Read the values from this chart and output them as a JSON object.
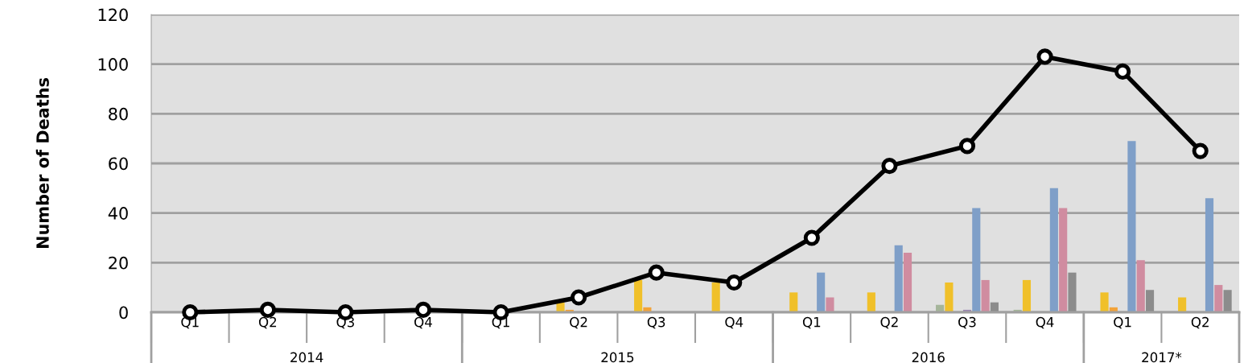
{
  "chart_data": {
    "type": "bar",
    "ylabel": "Number of Deaths",
    "categories": [
      "Q1",
      "Q2",
      "Q3",
      "Q4",
      "Q1",
      "Q2",
      "Q3",
      "Q4",
      "Q1",
      "Q2",
      "Q3",
      "Q4",
      "Q1",
      "Q2"
    ],
    "annotations": [
      "2014",
      "2015",
      "2016",
      "2017*"
    ],
    "series": [
      {
        "color": "#a5b59a",
        "values": [
          0,
          0,
          0,
          0,
          0,
          0,
          0,
          0,
          0,
          0,
          3,
          1,
          0,
          0
        ]
      },
      {
        "color": "#f0c02a",
        "values": [
          0,
          0,
          0,
          0,
          0,
          4,
          13,
          12,
          8,
          8,
          12,
          13,
          8,
          6
        ]
      },
      {
        "color": "#f2a33a",
        "values": [
          0,
          0,
          0,
          0,
          0,
          1,
          2,
          0,
          0,
          0,
          0,
          0,
          2,
          0
        ]
      },
      {
        "color": "#9a86b0",
        "values": [
          0,
          0,
          0,
          0,
          0,
          0,
          0,
          0,
          0,
          0,
          1,
          0,
          0,
          0
        ]
      },
      {
        "color": "#7f9fc8",
        "values": [
          0,
          0,
          0,
          0,
          0,
          0,
          0,
          0,
          16,
          27,
          42,
          50,
          69,
          46
        ]
      },
      {
        "color": "#d08ca0",
        "values": [
          0,
          0,
          0,
          0,
          0,
          0,
          0,
          0,
          6,
          24,
          13,
          42,
          21,
          11
        ]
      },
      {
        "color": "#8c8c8c",
        "values": [
          0,
          0,
          0,
          0,
          0,
          0,
          0,
          0,
          0,
          0,
          4,
          16,
          9,
          9
        ]
      },
      {
        "type": "line",
        "color": "#000000",
        "marker": "circle",
        "values": [
          0,
          1,
          0,
          1,
          0,
          6,
          16,
          12,
          30,
          59,
          67,
          103,
          97,
          65
        ]
      }
    ],
    "ylim": [
      0,
      120
    ],
    "yticks": [
      0,
      20,
      40,
      60,
      80,
      100,
      120
    ],
    "grid": "y",
    "legend": false
  }
}
